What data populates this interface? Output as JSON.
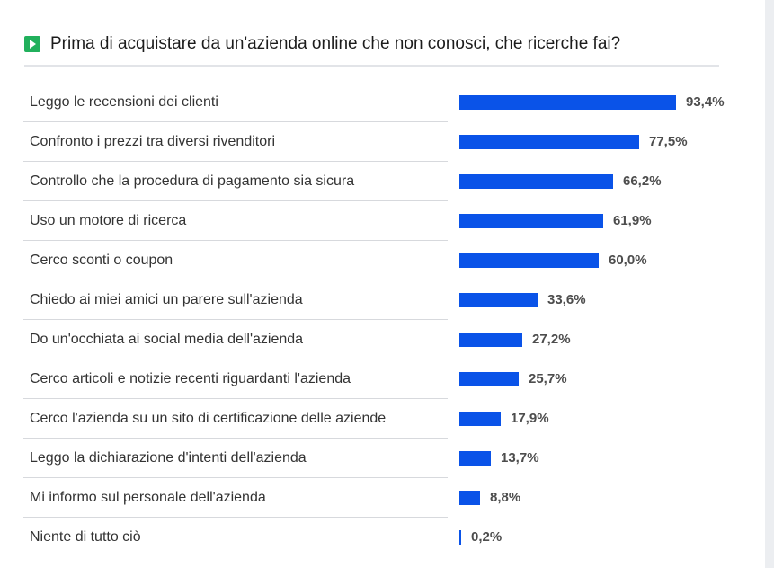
{
  "title": "Prima di acquistare da un'azienda online che non conosci, che ricerche fai?",
  "chart_data": {
    "type": "bar",
    "orientation": "horizontal",
    "title": "Prima di acquistare da un'azienda online che non conosci, che ricerche fai?",
    "categories": [
      "Leggo le recensioni dei clienti",
      "Confronto i prezzi tra diversi rivenditori",
      "Controllo che la procedura di pagamento sia sicura",
      "Uso un motore di ricerca",
      "Cerco sconti o coupon",
      "Chiedo ai miei amici un parere sull'azienda",
      "Do un'occhiata ai social media dell'azienda",
      "Cerco articoli e notizie recenti riguardanti l'azienda",
      "Cerco l'azienda su un sito di certificazione delle aziende",
      "Leggo la dichiarazione d'intenti dell'azienda",
      "Mi informo sul personale dell'azienda",
      "Niente di tutto ciò"
    ],
    "values": [
      93.4,
      77.5,
      66.2,
      61.9,
      60.0,
      33.6,
      27.2,
      25.7,
      17.9,
      13.7,
      8.8,
      0.2
    ],
    "value_labels": [
      "93,4%",
      "77,5%",
      "66,2%",
      "61,9%",
      "60,0%",
      "33,6%",
      "27,2%",
      "25,7%",
      "17,9%",
      "13,7%",
      "8,8%",
      "0,2%"
    ],
    "unit": "%",
    "xlim": [
      0,
      100
    ],
    "bar_color": "#0a53e8",
    "grid": false,
    "legend": "none"
  }
}
